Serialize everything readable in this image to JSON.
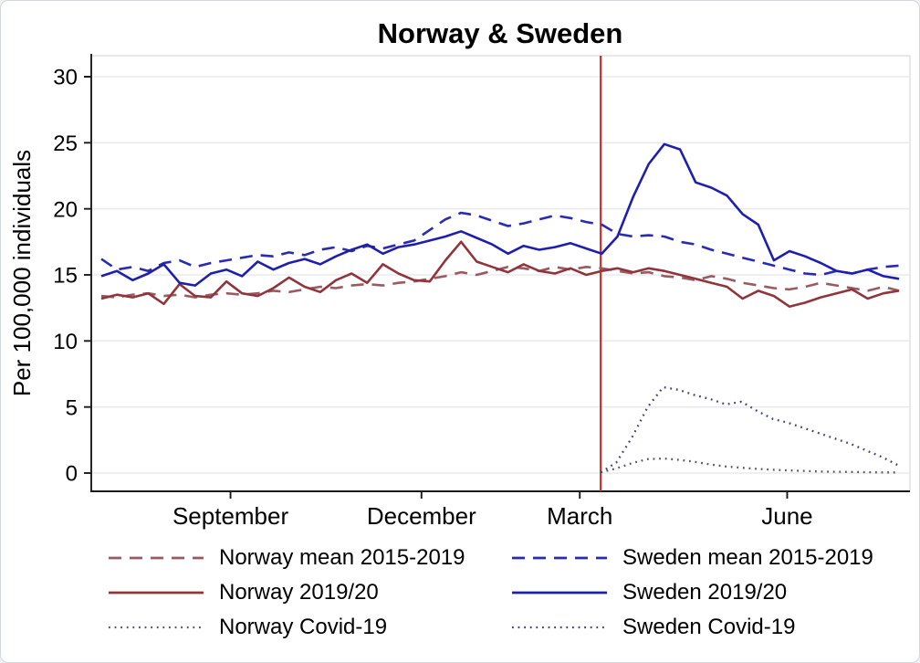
{
  "chart_data": {
    "type": "line",
    "title": "Norway & Sweden",
    "title_color": "#1c2e55",
    "ylabel": "Per 100,000 individuals",
    "yticks": [
      0,
      5,
      10,
      15,
      20,
      25,
      30
    ],
    "ylim": [
      -1.4,
      31.7
    ],
    "x_axis_unit": "weeks (Aug 2019 - Jul 2020)",
    "x_range": [
      0,
      51
    ],
    "xticks": [
      {
        "label": "September",
        "x": 8.26
      },
      {
        "label": "December",
        "x": 20.47
      },
      {
        "label": "March",
        "x": 30.59
      },
      {
        "label": "June",
        "x": 43.85
      }
    ],
    "vline": {
      "x": 31.93,
      "color": "#c63430"
    },
    "grid": true,
    "grid_color": "#e9eaec",
    "legend_position": "bottom",
    "series": [
      {
        "name": "Norway mean 2015-2019",
        "color": "#9a5a62",
        "style": "dashed",
        "x_start": 0,
        "values": [
          13.4,
          13.3,
          13.5,
          13.6,
          13.4,
          13.5,
          13.3,
          13.5,
          13.6,
          13.5,
          13.6,
          13.8,
          13.7,
          13.9,
          14.1,
          14.0,
          14.2,
          14.3,
          14.2,
          14.4,
          14.5,
          14.7,
          14.9,
          15.2,
          15.0,
          15.3,
          15.6,
          15.5,
          15.3,
          15.6,
          15.4,
          15.6,
          15.5,
          15.3,
          15.1,
          15.2,
          14.9,
          14.8,
          14.6,
          14.9,
          14.7,
          14.4,
          14.2,
          14.0,
          13.9,
          14.1,
          14.4,
          14.2,
          14.0,
          13.8,
          14.1,
          13.8
        ]
      },
      {
        "name": "Sweden mean 2015-2019",
        "color": "#2a2ab4",
        "style": "dashed",
        "x_start": 0,
        "values": [
          16.2,
          15.4,
          15.6,
          15.3,
          15.9,
          16.1,
          15.6,
          15.9,
          16.1,
          16.3,
          16.5,
          16.4,
          16.7,
          16.5,
          16.9,
          17.1,
          16.8,
          17.2,
          17.0,
          17.3,
          17.6,
          18.4,
          19.2,
          19.7,
          19.5,
          19.1,
          18.7,
          18.9,
          19.2,
          19.5,
          19.3,
          19.0,
          18.8,
          18.1,
          17.9,
          18.0,
          17.9,
          17.5,
          17.3,
          16.9,
          16.6,
          16.3,
          16.0,
          15.7,
          15.4,
          15.1,
          15.0,
          15.3,
          15.1,
          15.4,
          15.6,
          15.7
        ]
      },
      {
        "name": "Norway 2019/20",
        "color": "#90353b",
        "style": "solid",
        "x_start": 0,
        "values": [
          13.2,
          13.5,
          13.3,
          13.6,
          12.8,
          14.3,
          13.4,
          13.3,
          14.5,
          13.6,
          13.4,
          14.0,
          14.8,
          14.1,
          13.7,
          14.6,
          15.1,
          14.4,
          15.8,
          15.1,
          14.6,
          14.5,
          16.1,
          17.5,
          16.0,
          15.6,
          15.2,
          15.8,
          15.3,
          15.1,
          15.5,
          15.0,
          15.3,
          15.5,
          15.2,
          15.5,
          15.3,
          15.0,
          14.7,
          14.4,
          14.1,
          13.2,
          13.8,
          13.4,
          12.6,
          12.9,
          13.3,
          13.6,
          13.9,
          13.2,
          13.6,
          13.8
        ]
      },
      {
        "name": "Sweden 2019/20",
        "color": "#1f1fae",
        "style": "solid",
        "x_start": 0,
        "values": [
          14.9,
          15.3,
          14.6,
          15.1,
          15.8,
          14.4,
          14.2,
          15.1,
          15.4,
          14.9,
          16.0,
          15.4,
          15.9,
          16.2,
          15.8,
          16.4,
          16.9,
          17.3,
          16.6,
          17.1,
          17.3,
          17.6,
          17.9,
          18.3,
          17.8,
          17.3,
          16.6,
          17.2,
          16.9,
          17.1,
          17.4,
          17.0,
          16.6,
          17.9,
          20.9,
          23.4,
          24.9,
          24.5,
          22.0,
          21.6,
          21.0,
          19.6,
          18.8,
          16.1,
          16.8,
          16.4,
          15.9,
          15.3,
          15.1,
          15.4,
          14.9,
          14.7
        ]
      },
      {
        "name": "Norway Covid-19",
        "color": "#5a5468",
        "style": "dotted",
        "x_start": 31.93,
        "values": [
          0.05,
          0.35,
          0.75,
          1.05,
          1.1,
          1.0,
          0.85,
          0.65,
          0.5,
          0.4,
          0.32,
          0.25,
          0.2,
          0.16,
          0.12,
          0.1,
          0.08,
          0.06,
          0.05,
          0.05
        ]
      },
      {
        "name": "Sweden Covid-19",
        "color": "#42476a",
        "style": "dotted",
        "x_start": 31.93,
        "values": [
          0.05,
          0.8,
          2.7,
          5.0,
          6.5,
          6.3,
          5.9,
          5.6,
          5.2,
          5.4,
          4.7,
          4.1,
          3.8,
          3.4,
          3.0,
          2.6,
          2.2,
          1.7,
          1.2,
          0.6
        ]
      }
    ]
  }
}
